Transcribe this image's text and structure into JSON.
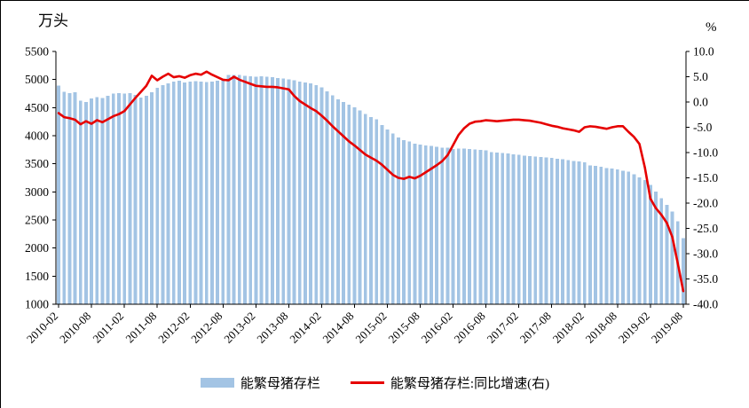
{
  "chart_data": {
    "type": "bar",
    "combo": "bar+line",
    "title": "",
    "left_axis": {
      "label": "万头",
      "min": 1000,
      "max": 5500,
      "step": 500,
      "ticks": [
        "5500",
        "5000",
        "4500",
        "4000",
        "3500",
        "3000",
        "2500",
        "2000",
        "1500",
        "1000"
      ]
    },
    "right_axis": {
      "label": "%",
      "min": -40,
      "max": 10,
      "step": 5,
      "ticks": [
        "10.0",
        "5.0",
        "0.0",
        "-5.0",
        "-10.0",
        "-15.0",
        "-20.0",
        "-25.0",
        "-30.0",
        "-35.0",
        "-40.0"
      ]
    },
    "x_tick_every": 6,
    "grid": false,
    "legend_position": "bottom",
    "categories": [
      "2010-02",
      "2010-03",
      "2010-04",
      "2010-05",
      "2010-06",
      "2010-07",
      "2010-08",
      "2010-09",
      "2010-10",
      "2010-11",
      "2010-12",
      "2011-01",
      "2011-02",
      "2011-03",
      "2011-04",
      "2011-05",
      "2011-06",
      "2011-07",
      "2011-08",
      "2011-09",
      "2011-10",
      "2011-11",
      "2011-12",
      "2012-01",
      "2012-02",
      "2012-03",
      "2012-04",
      "2012-05",
      "2012-06",
      "2012-07",
      "2012-08",
      "2012-09",
      "2012-10",
      "2012-11",
      "2012-12",
      "2013-01",
      "2013-02",
      "2013-03",
      "2013-04",
      "2013-05",
      "2013-06",
      "2013-07",
      "2013-08",
      "2013-09",
      "2013-10",
      "2013-11",
      "2013-12",
      "2014-01",
      "2014-02",
      "2014-03",
      "2014-04",
      "2014-05",
      "2014-06",
      "2014-07",
      "2014-08",
      "2014-09",
      "2014-10",
      "2014-11",
      "2014-12",
      "2015-01",
      "2015-02",
      "2015-03",
      "2015-04",
      "2015-05",
      "2015-06",
      "2015-07",
      "2015-08",
      "2015-09",
      "2015-10",
      "2015-11",
      "2015-12",
      "2016-01",
      "2016-02",
      "2016-03",
      "2016-04",
      "2016-05",
      "2016-06",
      "2016-07",
      "2016-08",
      "2016-09",
      "2016-10",
      "2016-11",
      "2016-12",
      "2017-01",
      "2017-02",
      "2017-03",
      "2017-04",
      "2017-05",
      "2017-06",
      "2017-07",
      "2017-08",
      "2017-09",
      "2017-10",
      "2017-11",
      "2017-12",
      "2018-01",
      "2018-02",
      "2018-03",
      "2018-04",
      "2018-05",
      "2018-06",
      "2018-07",
      "2018-08",
      "2018-09",
      "2018-10",
      "2018-11",
      "2018-12",
      "2019-01",
      "2019-02",
      "2019-03",
      "2019-04",
      "2019-05",
      "2019-06",
      "2019-07",
      "2019-08"
    ],
    "series": [
      {
        "name": "能繁母猪存栏",
        "type": "bar",
        "axis": "left",
        "color": "#a3c4e4",
        "values": [
          4890,
          4780,
          4760,
          4770,
          4620,
          4600,
          4660,
          4690,
          4670,
          4710,
          4750,
          4760,
          4750,
          4760,
          4730,
          4680,
          4710,
          4770,
          4850,
          4900,
          4930,
          4960,
          4980,
          4950,
          4960,
          4970,
          4960,
          4955,
          4965,
          4980,
          5010,
          5078,
          5078,
          5080,
          5068,
          5060,
          5048,
          5060,
          5050,
          5040,
          5030,
          5015,
          5000,
          4985,
          4965,
          4950,
          4935,
          4900,
          4860,
          4791,
          4720,
          4650,
          4599,
          4550,
          4502,
          4450,
          4390,
          4330,
          4289,
          4190,
          4110,
          4040,
          3971,
          3920,
          3899,
          3860,
          3842,
          3830,
          3815,
          3800,
          3783,
          3783,
          3760,
          3771,
          3771,
          3760,
          3752,
          3745,
          3737,
          3710,
          3703,
          3690,
          3683,
          3670,
          3661,
          3648,
          3640,
          3630,
          3620,
          3613,
          3605,
          3589,
          3578,
          3565,
          3552,
          3540,
          3530,
          3475,
          3462,
          3444,
          3423,
          3412,
          3403,
          3379,
          3360,
          3310,
          3256,
          3210,
          3120,
          3005,
          2890,
          2771,
          2650,
          2480,
          2180
        ]
      },
      {
        "name": "能繁母猪存栏:同比增速(右)",
        "type": "line",
        "axis": "right",
        "color": "#e60000",
        "values": [
          -2.2,
          -3.0,
          -3.2,
          -3.5,
          -4.4,
          -3.8,
          -4.3,
          -3.6,
          -4.0,
          -3.4,
          -2.8,
          -2.4,
          -1.8,
          -0.5,
          0.8,
          2.0,
          3.2,
          5.2,
          4.3,
          5.0,
          5.6,
          4.9,
          5.1,
          4.8,
          5.3,
          5.6,
          5.4,
          6.0,
          5.4,
          4.9,
          4.4,
          4.3,
          5.0,
          4.4,
          4.0,
          3.6,
          3.2,
          3.1,
          3.0,
          3.0,
          2.9,
          2.7,
          2.5,
          1.2,
          0.2,
          -0.5,
          -1.2,
          -1.8,
          -2.7,
          -3.7,
          -4.8,
          -5.8,
          -6.8,
          -7.8,
          -8.6,
          -9.5,
          -10.4,
          -11.0,
          -11.6,
          -12.4,
          -13.4,
          -14.4,
          -15.0,
          -15.2,
          -14.8,
          -15.1,
          -14.6,
          -13.9,
          -13.2,
          -12.5,
          -11.7,
          -10.5,
          -8.5,
          -6.5,
          -5.2,
          -4.3,
          -3.9,
          -3.8,
          -3.6,
          -3.7,
          -3.8,
          -3.7,
          -3.6,
          -3.5,
          -3.5,
          -3.6,
          -3.7,
          -3.9,
          -4.1,
          -4.4,
          -4.7,
          -4.9,
          -5.2,
          -5.4,
          -5.6,
          -5.9,
          -5.0,
          -4.8,
          -4.9,
          -5.1,
          -5.3,
          -5.0,
          -4.8,
          -4.8,
          -5.9,
          -6.9,
          -8.3,
          -13.0,
          -19.1,
          -21.0,
          -22.3,
          -23.9,
          -26.7,
          -31.9,
          -37.4
        ]
      }
    ],
    "legend": [
      "能繁母猪存栏",
      "能繁母猪存栏:同比增速(右)"
    ]
  }
}
